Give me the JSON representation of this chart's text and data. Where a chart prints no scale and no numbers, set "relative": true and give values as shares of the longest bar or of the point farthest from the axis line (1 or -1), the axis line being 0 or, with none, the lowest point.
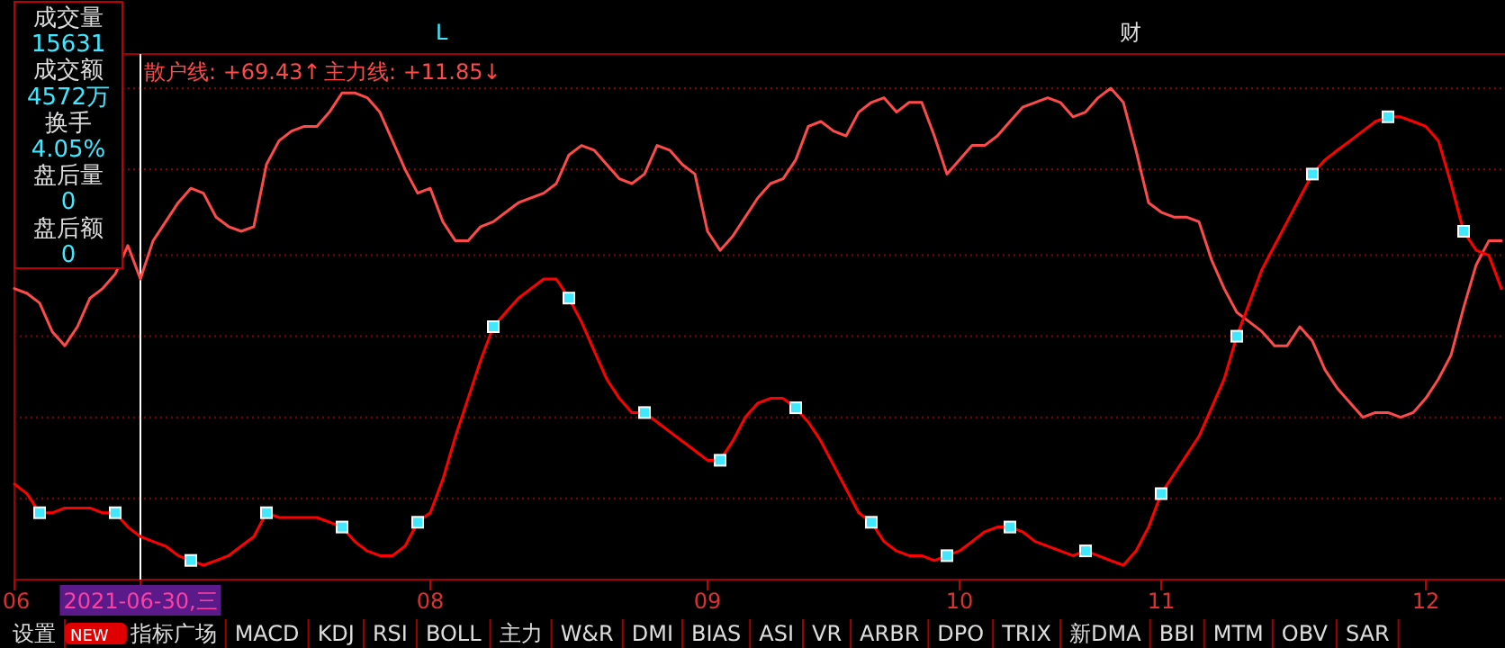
{
  "chart_data": {
    "type": "line",
    "relative": true,
    "categories": [
      "06",
      null,
      null,
      null,
      null,
      null,
      null,
      null,
      null,
      null,
      "2021-06-30,三",
      null,
      null,
      null,
      null,
      null,
      null,
      null,
      null,
      null,
      null,
      null,
      null,
      null,
      null,
      null,
      null,
      null,
      null,
      null,
      null,
      null,
      null,
      "08",
      null,
      null,
      null,
      null,
      null,
      null,
      null,
      null,
      null,
      null,
      null,
      null,
      null,
      null,
      null,
      null,
      null,
      null,
      null,
      null,
      null,
      "09",
      null,
      null,
      null,
      null,
      null,
      null,
      null,
      null,
      null,
      null,
      null,
      null,
      null,
      null,
      null,
      null,
      null,
      null,
      null,
      "10",
      null,
      null,
      null,
      null,
      null,
      null,
      null,
      null,
      null,
      null,
      null,
      null,
      null,
      null,
      null,
      "11",
      null,
      null,
      null,
      null,
      null,
      null,
      null,
      null,
      null,
      null,
      null,
      null,
      null,
      null,
      null,
      null,
      null,
      null,
      null,
      null,
      "12",
      null,
      null,
      null,
      null,
      null,
      null
    ],
    "ref_lines": [
      {
        "axis": "x",
        "value": "2021-06-30,三",
        "color": "#ffffff"
      },
      {
        "axis": "y",
        "value": 1.0,
        "color": "#8a0000",
        "line_style": "dotted"
      },
      {
        "axis": "y",
        "value": 0.83,
        "color": "#8a0000",
        "line_style": "dotted"
      },
      {
        "axis": "y",
        "value": 0.65,
        "color": "#8a0000",
        "line_style": "dotted"
      },
      {
        "axis": "y",
        "value": 0.48,
        "color": "#8a0000",
        "line_style": "dotted"
      },
      {
        "axis": "y",
        "value": 0.31,
        "color": "#8a0000",
        "line_style": "dotted"
      },
      {
        "axis": "y",
        "value": 0.14,
        "color": "#8a0000",
        "line_style": "dotted"
      }
    ],
    "series": [
      {
        "color": "#ff4a4a",
        "values": [
          0.58,
          0.57,
          0.55,
          0.49,
          0.46,
          0.5,
          0.56,
          0.58,
          0.61,
          0.67,
          0.6,
          0.68,
          0.72,
          0.76,
          0.79,
          0.78,
          0.73,
          0.71,
          0.7,
          0.71,
          0.84,
          0.89,
          0.91,
          0.92,
          0.92,
          0.95,
          0.99,
          0.99,
          0.98,
          0.95,
          0.89,
          0.83,
          0.78,
          0.79,
          0.72,
          0.68,
          0.68,
          0.71,
          0.72,
          0.74,
          0.76,
          0.77,
          0.78,
          0.8,
          0.86,
          0.88,
          0.87,
          0.84,
          0.81,
          0.8,
          0.82,
          0.88,
          0.87,
          0.84,
          0.82,
          0.7,
          0.66,
          0.69,
          0.73,
          0.77,
          0.8,
          0.81,
          0.85,
          0.92,
          0.93,
          0.91,
          0.9,
          0.95,
          0.97,
          0.98,
          0.95,
          0.97,
          0.97,
          0.9,
          0.82,
          0.85,
          0.88,
          0.88,
          0.9,
          0.93,
          0.96,
          0.97,
          0.98,
          0.97,
          0.94,
          0.95,
          0.98,
          1.0,
          0.97,
          0.87,
          0.76,
          0.74,
          0.73,
          0.73,
          0.72,
          0.64,
          0.58,
          0.53,
          0.51,
          0.49,
          0.46,
          0.46,
          0.5,
          0.47,
          0.41,
          0.37,
          0.34,
          0.31,
          0.32,
          0.32,
          0.31,
          0.32,
          0.35,
          0.39,
          0.44,
          0.54,
          0.63,
          0.68,
          0.68
        ]
      },
      {
        "color": "#ff0000",
        "values": [
          0.17,
          0.15,
          0.11,
          0.11,
          0.12,
          0.12,
          0.12,
          0.11,
          0.11,
          0.08,
          0.06,
          0.05,
          0.04,
          0.02,
          0.01,
          0.0,
          0.01,
          0.02,
          0.04,
          0.06,
          0.11,
          0.1,
          0.1,
          0.1,
          0.1,
          0.09,
          0.08,
          0.05,
          0.03,
          0.02,
          0.02,
          0.04,
          0.09,
          0.11,
          0.18,
          0.27,
          0.35,
          0.43,
          0.5,
          0.53,
          0.56,
          0.58,
          0.6,
          0.6,
          0.56,
          0.51,
          0.45,
          0.39,
          0.35,
          0.32,
          0.32,
          0.3,
          0.28,
          0.26,
          0.24,
          0.22,
          0.22,
          0.26,
          0.31,
          0.34,
          0.35,
          0.35,
          0.33,
          0.3,
          0.26,
          0.21,
          0.16,
          0.11,
          0.09,
          0.05,
          0.03,
          0.02,
          0.02,
          0.01,
          0.02,
          0.03,
          0.05,
          0.07,
          0.08,
          0.08,
          0.07,
          0.05,
          0.04,
          0.03,
          0.02,
          0.03,
          0.02,
          0.01,
          0.0,
          0.03,
          0.08,
          0.15,
          0.19,
          0.23,
          0.27,
          0.33,
          0.39,
          0.48,
          0.55,
          0.62,
          0.67,
          0.72,
          0.77,
          0.82,
          0.85,
          0.87,
          0.89,
          0.91,
          0.93,
          0.94,
          0.94,
          0.93,
          0.92,
          0.89,
          0.8,
          0.7,
          0.66,
          0.65,
          0.58
        ]
      },
      {
        "type": "scatter",
        "color": "#40e8ff",
        "marker": "square",
        "values": [
          null,
          null,
          0.11,
          null,
          null,
          null,
          null,
          null,
          0.11,
          null,
          null,
          null,
          null,
          null,
          0.01,
          null,
          null,
          null,
          null,
          null,
          0.11,
          null,
          null,
          null,
          null,
          null,
          0.08,
          null,
          null,
          null,
          null,
          null,
          0.09,
          null,
          null,
          null,
          null,
          null,
          0.5,
          null,
          null,
          null,
          null,
          null,
          0.56,
          null,
          null,
          null,
          null,
          null,
          0.32,
          null,
          null,
          null,
          null,
          null,
          0.22,
          null,
          null,
          null,
          null,
          null,
          0.33,
          null,
          null,
          null,
          null,
          null,
          0.09,
          null,
          null,
          null,
          null,
          null,
          0.02,
          null,
          null,
          null,
          null,
          0.08,
          null,
          null,
          null,
          null,
          null,
          0.03,
          null,
          null,
          null,
          null,
          null,
          0.15,
          null,
          null,
          null,
          null,
          null,
          0.48,
          null,
          null,
          null,
          null,
          null,
          0.82,
          null,
          null,
          null,
          null,
          null,
          0.94,
          null,
          null,
          null,
          null,
          null,
          0.7,
          null,
          null,
          null
        ]
      }
    ],
    "annotations": [
      "散户线: +69.43↑",
      "主力线: +11.85↓",
      "L",
      "财",
      "成交量",
      "15631",
      "成交额",
      "4572万",
      "换手",
      "4.05%",
      "盘后量",
      "0",
      "盘后额",
      "0",
      "设置",
      "NEW",
      "指标广场",
      "MACD",
      "KDJ",
      "RSI",
      "BOLL",
      "主力",
      "W&R",
      "DMI",
      "BIAS",
      "ASI",
      "VR",
      "ARBR",
      "DPO",
      "TRIX",
      "新DMA",
      "BBI",
      "MTM",
      "OBV",
      "SAR"
    ]
  }
}
